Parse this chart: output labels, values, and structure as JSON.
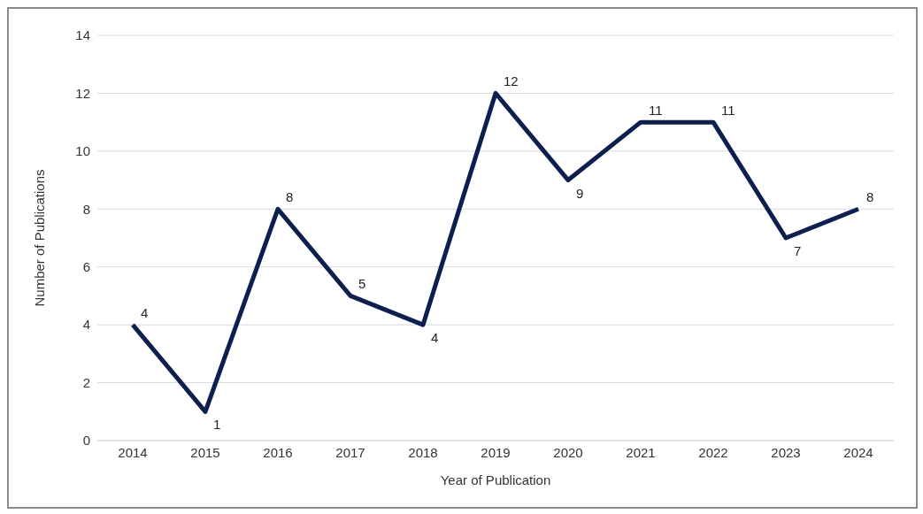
{
  "chart_data": {
    "type": "line",
    "xlabel": "Year of Publication",
    "ylabel": "Number of Publications",
    "categories": [
      "2014",
      "2015",
      "2016",
      "2017",
      "2018",
      "2019",
      "2020",
      "2021",
      "2022",
      "2023",
      "2024"
    ],
    "series": [
      {
        "color": "#0d1f4f",
        "values": [
          4,
          1,
          8,
          5,
          4,
          12,
          9,
          11,
          11,
          7,
          8
        ]
      }
    ],
    "ylim": [
      0,
      14
    ],
    "yticks": [
      0,
      2,
      4,
      6,
      8,
      10,
      12,
      14
    ],
    "grid": "y",
    "data_labels": true,
    "marker": "none",
    "line_style": "solid",
    "legend": false
  }
}
